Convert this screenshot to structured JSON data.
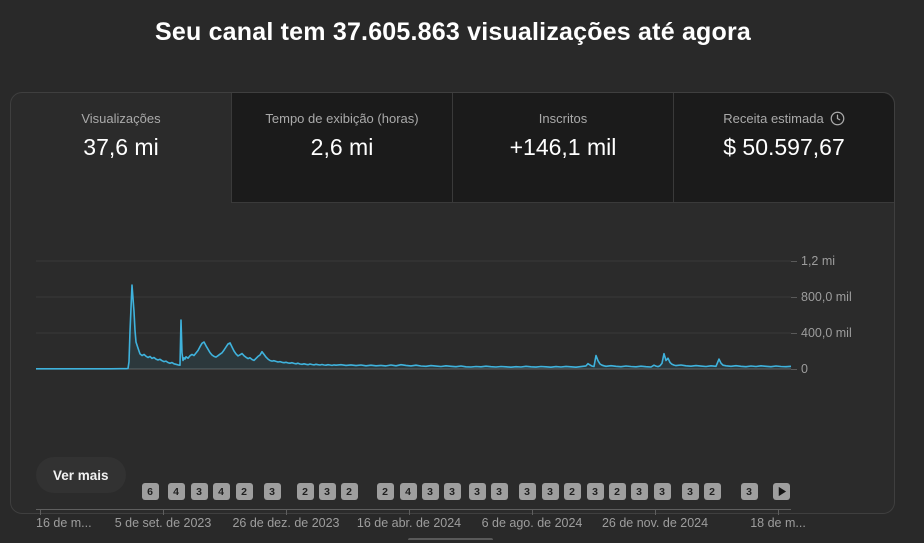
{
  "page": {
    "title": "Seu canal tem 37.605.863 visualizações até agora",
    "background": "#292929",
    "card_background": "#2b2b2b",
    "accent_line_color": "#3fb2dc"
  },
  "tabs": [
    {
      "label": "Visualizações",
      "value": "37,6 mi",
      "selected": true
    },
    {
      "label": "Tempo de exibição (horas)",
      "value": "2,6 mi",
      "selected": false
    },
    {
      "label": "Inscritos",
      "value": "+146,1 mil",
      "selected": false
    },
    {
      "label": "Receita estimada",
      "value": "$ 50.597,67",
      "selected": false,
      "icon": "clock-icon"
    }
  ],
  "chart_data": {
    "type": "area",
    "series_name": "Visualizações",
    "title": "",
    "xlabel": "",
    "ylabel": "",
    "grid": true,
    "legend": "none",
    "ylim": [
      0,
      1200000
    ],
    "y_ticks": [
      {
        "label": "1,2 mi",
        "value": 1200000
      },
      {
        "label": "800,0 mil",
        "value": 800000
      },
      {
        "label": "400,0 mil",
        "value": 400000
      },
      {
        "label": "0",
        "value": 0
      }
    ],
    "x_tick_labels": [
      "16 de m...",
      "5 de set. de 2023",
      "26 de dez. de 2023",
      "16 de abr. de 2024",
      "6 de ago. de 2024",
      "26 de nov. de 2024",
      "18 de m..."
    ],
    "x_tick_positions": [
      29,
      152,
      275,
      398,
      521,
      644,
      767
    ],
    "peak_value_approx": 933000,
    "second_peak_approx": 544000,
    "points_encoding": {
      "x": "pixels from left edge of plot area (0-755)",
      "v": "daily views in thousands, approximated from chart"
    },
    "points": [
      [
        0,
        2
      ],
      [
        15,
        2
      ],
      [
        30,
        2
      ],
      [
        45,
        2
      ],
      [
        60,
        2
      ],
      [
        75,
        2
      ],
      [
        85,
        3
      ],
      [
        90,
        3
      ],
      [
        92,
        6
      ],
      [
        93,
        80
      ],
      [
        94,
        420
      ],
      [
        96,
        933
      ],
      [
        98,
        640
      ],
      [
        99,
        430
      ],
      [
        100,
        300
      ],
      [
        102,
        232
      ],
      [
        104,
        168
      ],
      [
        106,
        150
      ],
      [
        108,
        162
      ],
      [
        110,
        142
      ],
      [
        112,
        128
      ],
      [
        114,
        140
      ],
      [
        116,
        118
      ],
      [
        118,
        128
      ],
      [
        120,
        110
      ],
      [
        122,
        100
      ],
      [
        124,
        108
      ],
      [
        126,
        92
      ],
      [
        128,
        82
      ],
      [
        130,
        88
      ],
      [
        132,
        72
      ],
      [
        134,
        63
      ],
      [
        136,
        72
      ],
      [
        138,
        58
      ],
      [
        140,
        52
      ],
      [
        142,
        46
      ],
      [
        144,
        42
      ],
      [
        145,
        544
      ],
      [
        146,
        180
      ],
      [
        147,
        95
      ],
      [
        148,
        125
      ],
      [
        149,
        110
      ],
      [
        150,
        135
      ],
      [
        152,
        120
      ],
      [
        154,
        148
      ],
      [
        156,
        162
      ],
      [
        158,
        150
      ],
      [
        160,
        178
      ],
      [
        162,
        205
      ],
      [
        164,
        248
      ],
      [
        166,
        285
      ],
      [
        168,
        300
      ],
      [
        170,
        258
      ],
      [
        172,
        220
      ],
      [
        174,
        182
      ],
      [
        176,
        155
      ],
      [
        178,
        140
      ],
      [
        180,
        132
      ],
      [
        182,
        148
      ],
      [
        184,
        165
      ],
      [
        186,
        180
      ],
      [
        188,
        210
      ],
      [
        190,
        245
      ],
      [
        192,
        278
      ],
      [
        194,
        290
      ],
      [
        196,
        245
      ],
      [
        198,
        200
      ],
      [
        200,
        168
      ],
      [
        202,
        146
      ],
      [
        204,
        158
      ],
      [
        206,
        172
      ],
      [
        208,
        148
      ],
      [
        210,
        130
      ],
      [
        212,
        116
      ],
      [
        214,
        124
      ],
      [
        216,
        106
      ],
      [
        218,
        96
      ],
      [
        220,
        118
      ],
      [
        222,
        140
      ],
      [
        224,
        155
      ],
      [
        226,
        192
      ],
      [
        228,
        162
      ],
      [
        230,
        132
      ],
      [
        232,
        110
      ],
      [
        234,
        94
      ],
      [
        236,
        88
      ],
      [
        238,
        92
      ],
      [
        240,
        84
      ],
      [
        242,
        78
      ],
      [
        244,
        82
      ],
      [
        246,
        74
      ],
      [
        248,
        70
      ],
      [
        250,
        75
      ],
      [
        252,
        68
      ],
      [
        254,
        64
      ],
      [
        256,
        70
      ],
      [
        258,
        62
      ],
      [
        260,
        58
      ],
      [
        262,
        65
      ],
      [
        264,
        56
      ],
      [
        266,
        52
      ],
      [
        268,
        58
      ],
      [
        270,
        52
      ],
      [
        272,
        48
      ],
      [
        274,
        56
      ],
      [
        276,
        50
      ],
      [
        278,
        46
      ],
      [
        280,
        52
      ],
      [
        282,
        48
      ],
      [
        284,
        44
      ],
      [
        286,
        50
      ],
      [
        288,
        45
      ],
      [
        290,
        42
      ],
      [
        292,
        48
      ],
      [
        294,
        44
      ],
      [
        296,
        40
      ],
      [
        298,
        46
      ],
      [
        300,
        42
      ],
      [
        305,
        48
      ],
      [
        310,
        40
      ],
      [
        315,
        46
      ],
      [
        320,
        38
      ],
      [
        325,
        45
      ],
      [
        330,
        36
      ],
      [
        335,
        42
      ],
      [
        340,
        35
      ],
      [
        345,
        40
      ],
      [
        350,
        34
      ],
      [
        355,
        45
      ],
      [
        360,
        36
      ],
      [
        365,
        48
      ],
      [
        370,
        40
      ],
      [
        375,
        34
      ],
      [
        380,
        42
      ],
      [
        385,
        33
      ],
      [
        390,
        30
      ],
      [
        395,
        38
      ],
      [
        400,
        32
      ],
      [
        405,
        28
      ],
      [
        410,
        36
      ],
      [
        415,
        30
      ],
      [
        420,
        26
      ],
      [
        425,
        33
      ],
      [
        430,
        25
      ],
      [
        435,
        22
      ],
      [
        440,
        28
      ],
      [
        445,
        24
      ],
      [
        450,
        31
      ],
      [
        455,
        26
      ],
      [
        460,
        22
      ],
      [
        465,
        28
      ],
      [
        470,
        24
      ],
      [
        475,
        20
      ],
      [
        480,
        26
      ],
      [
        485,
        22
      ],
      [
        490,
        30
      ],
      [
        495,
        25
      ],
      [
        500,
        21
      ],
      [
        505,
        28
      ],
      [
        510,
        24
      ],
      [
        515,
        20
      ],
      [
        520,
        27
      ],
      [
        525,
        22
      ],
      [
        530,
        29
      ],
      [
        535,
        24
      ],
      [
        540,
        20
      ],
      [
        545,
        27
      ],
      [
        550,
        34
      ],
      [
        552,
        60
      ],
      [
        554,
        44
      ],
      [
        556,
        32
      ],
      [
        558,
        28
      ],
      [
        560,
        150
      ],
      [
        562,
        92
      ],
      [
        564,
        56
      ],
      [
        566,
        42
      ],
      [
        568,
        35
      ],
      [
        570,
        30
      ],
      [
        575,
        37
      ],
      [
        580,
        30
      ],
      [
        585,
        26
      ],
      [
        590,
        33
      ],
      [
        595,
        28
      ],
      [
        600,
        24
      ],
      [
        605,
        31
      ],
      [
        610,
        26
      ],
      [
        615,
        22
      ],
      [
        618,
        42
      ],
      [
        620,
        32
      ],
      [
        622,
        27
      ],
      [
        624,
        36
      ],
      [
        626,
        64
      ],
      [
        628,
        170
      ],
      [
        630,
        95
      ],
      [
        632,
        120
      ],
      [
        634,
        72
      ],
      [
        636,
        52
      ],
      [
        638,
        43
      ],
      [
        640,
        38
      ],
      [
        645,
        45
      ],
      [
        650,
        36
      ],
      [
        655,
        31
      ],
      [
        660,
        38
      ],
      [
        665,
        32
      ],
      [
        670,
        28
      ],
      [
        675,
        35
      ],
      [
        680,
        30
      ],
      [
        683,
        110
      ],
      [
        685,
        64
      ],
      [
        687,
        42
      ],
      [
        690,
        35
      ],
      [
        695,
        30
      ],
      [
        700,
        37
      ],
      [
        705,
        30
      ],
      [
        710,
        26
      ],
      [
        715,
        33
      ],
      [
        720,
        28
      ],
      [
        725,
        35
      ],
      [
        730,
        30
      ],
      [
        735,
        26
      ],
      [
        740,
        33
      ],
      [
        745,
        28
      ],
      [
        750,
        26
      ],
      [
        755,
        30
      ]
    ]
  },
  "video_badges": {
    "description": "videos published markers, [center_x_px_in_card, count]",
    "items": [
      [
        139,
        6
      ],
      [
        165,
        4
      ],
      [
        188,
        3
      ],
      [
        210,
        4
      ],
      [
        233,
        2
      ],
      [
        261,
        3
      ],
      [
        294,
        2
      ],
      [
        316,
        3
      ],
      [
        338,
        2
      ],
      [
        374,
        2
      ],
      [
        397,
        4
      ],
      [
        419,
        3
      ],
      [
        441,
        3
      ],
      [
        466,
        3
      ],
      [
        488,
        3
      ],
      [
        516,
        3
      ],
      [
        539,
        3
      ],
      [
        561,
        2
      ],
      [
        584,
        3
      ],
      [
        606,
        2
      ],
      [
        628,
        3
      ],
      [
        651,
        3
      ],
      [
        679,
        3
      ],
      [
        701,
        2
      ],
      [
        738,
        3
      ]
    ],
    "next_arrow": "play-arrow"
  },
  "footer": {
    "ver_mais": "Ver mais"
  }
}
